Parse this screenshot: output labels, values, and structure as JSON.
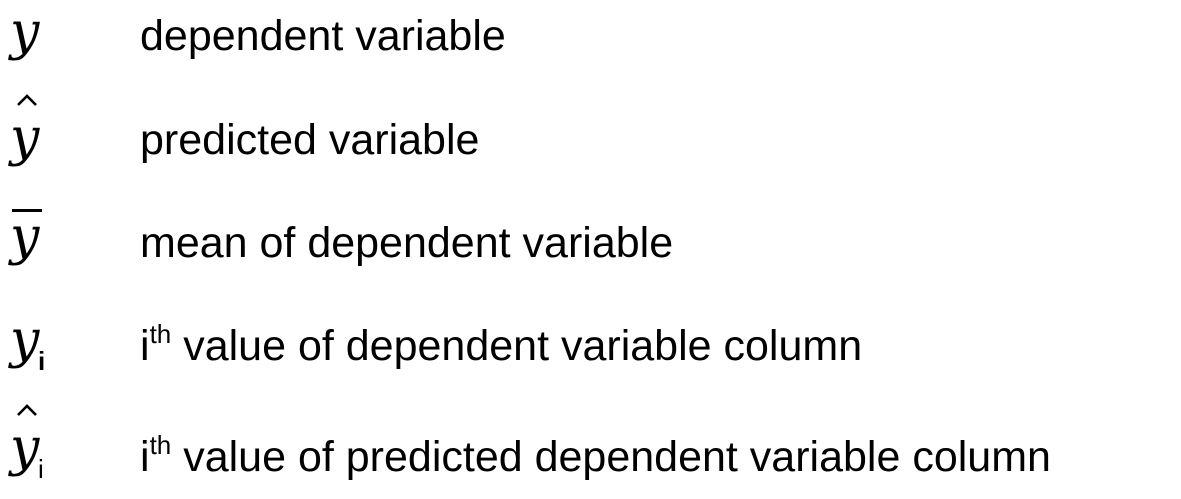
{
  "legend": {
    "items": [
      {
        "symbol": {
          "base": "y",
          "subscript": "",
          "accent": "none"
        },
        "description": {
          "prefix": "",
          "superscript": "",
          "text": "dependent variable"
        }
      },
      {
        "symbol": {
          "base": "y",
          "subscript": "",
          "accent": "hat"
        },
        "description": {
          "prefix": "",
          "superscript": "",
          "text": "predicted variable"
        }
      },
      {
        "symbol": {
          "base": "y",
          "subscript": "",
          "accent": "bar"
        },
        "description": {
          "prefix": "",
          "superscript": "",
          "text": "mean of dependent variable"
        }
      },
      {
        "symbol": {
          "base": "y",
          "subscript": "i",
          "accent": "none"
        },
        "description": {
          "prefix": "i",
          "superscript": "th",
          "text": "value of dependent variable column"
        }
      },
      {
        "symbol": {
          "base": "y",
          "subscript": "i",
          "accent": "hat"
        },
        "description": {
          "prefix": "i",
          "superscript": "th",
          "text": "value of predicted dependent variable column"
        }
      }
    ]
  }
}
